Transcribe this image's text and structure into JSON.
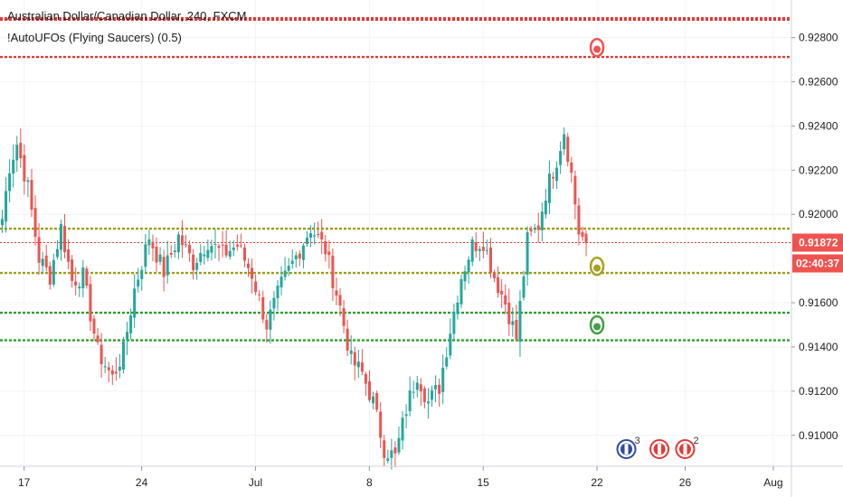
{
  "legend": {
    "symbol_title": "Australian Dollar/Canadian Dollar, 240, FXCM",
    "indicator_title": "!AutoUFOs (Flying Saucers) (0.5)"
  },
  "price_axis": {
    "ticks": [
      "0.92800",
      "0.92600",
      "0.92400",
      "0.92200",
      "0.92000",
      "0.91600",
      "0.91400",
      "0.91200",
      "0.91000"
    ],
    "tick_values": [
      0.928,
      0.926,
      0.924,
      0.922,
      0.92,
      0.916,
      0.914,
      0.912,
      0.91
    ],
    "current_price_label": "0.91872",
    "current_price": 0.91872,
    "countdown_label": "02:40:37",
    "badge_color": "#ef5350"
  },
  "time_axis": {
    "ticks": [
      "17",
      "24",
      "Jul",
      "8",
      "15",
      "22",
      "26",
      "Aug"
    ],
    "tick_bars": [
      3,
      35,
      66,
      97,
      128,
      159,
      183,
      207
    ]
  },
  "levels": [
    {
      "price": 0.92888,
      "color": "#e53935",
      "style": "dotted-thick"
    },
    {
      "price": 0.92881,
      "color": "#e53935",
      "style": "dotted-thick"
    },
    {
      "price": 0.92712,
      "color": "#e53935",
      "style": "dotted-thick"
    },
    {
      "price": 0.91935,
      "color": "#9e9e1a",
      "style": "dotted-thick"
    },
    {
      "price": 0.91872,
      "color": "#e53935",
      "style": "dotted-thin"
    },
    {
      "price": 0.91735,
      "color": "#9e9e1a",
      "style": "dotted-thick"
    },
    {
      "price": 0.91555,
      "color": "#2e9e2e",
      "style": "dotted-thick"
    },
    {
      "price": 0.9143,
      "color": "#2e9e2e",
      "style": "dotted-thick"
    }
  ],
  "ufo_markers": [
    {
      "bar": 159,
      "price": 0.92755,
      "color": "#ef5350"
    },
    {
      "bar": 159,
      "price": 0.91765,
      "color": "#a8a020"
    },
    {
      "bar": 159,
      "price": 0.915,
      "color": "#43a047"
    }
  ],
  "events": [
    {
      "name": "australia-flag-icon",
      "bar": 167,
      "count": "3",
      "color": "#2d4da0"
    },
    {
      "name": "canada-flag-icon",
      "bar": 176,
      "count": "",
      "color": "#e53935"
    },
    {
      "name": "canada-flag-icon-2",
      "bar": 183,
      "count": "2",
      "color": "#e53935"
    }
  ],
  "colors": {
    "up": "#26a69a",
    "down": "#ef5350",
    "grid": "#f0f3fa",
    "axis_line": "#555555"
  },
  "chart_data": {
    "type": "candlestick",
    "title": "Australian Dollar/Canadian Dollar, 240, FXCM",
    "ylim": [
      0.9086,
      0.9297
    ],
    "xlabel": "",
    "ylabel": "",
    "grid": true,
    "anchors": [
      [
        0,
        0.9198
      ],
      [
        2,
        0.9222
      ],
      [
        4,
        0.9232
      ],
      [
        7,
        0.9212
      ],
      [
        10,
        0.918
      ],
      [
        13,
        0.9172
      ],
      [
        16,
        0.9194
      ],
      [
        19,
        0.917
      ],
      [
        22,
        0.9172
      ],
      [
        26,
        0.9138
      ],
      [
        30,
        0.9126
      ],
      [
        33,
        0.9138
      ],
      [
        36,
        0.9166
      ],
      [
        40,
        0.919
      ],
      [
        44,
        0.9174
      ],
      [
        48,
        0.919
      ],
      [
        52,
        0.9178
      ],
      [
        56,
        0.9188
      ],
      [
        60,
        0.9182
      ],
      [
        64,
        0.9186
      ],
      [
        68,
        0.9173
      ],
      [
        72,
        0.915
      ],
      [
        76,
        0.9168
      ],
      [
        80,
        0.9181
      ],
      [
        84,
        0.9194
      ],
      [
        88,
        0.9184
      ],
      [
        92,
        0.9158
      ],
      [
        95,
        0.9134
      ],
      [
        98,
        0.9128
      ],
      [
        101,
        0.9115
      ],
      [
        104,
        0.9094
      ],
      [
        107,
        0.909
      ],
      [
        110,
        0.9112
      ],
      [
        113,
        0.9128
      ],
      [
        116,
        0.9115
      ],
      [
        119,
        0.9122
      ],
      [
        122,
        0.9148
      ],
      [
        125,
        0.9172
      ],
      [
        128,
        0.9186
      ],
      [
        131,
        0.9188
      ],
      [
        134,
        0.9172
      ],
      [
        137,
        0.916
      ],
      [
        140,
        0.9144
      ],
      [
        143,
        0.9188
      ],
      [
        146,
        0.9195
      ],
      [
        148,
        0.921
      ],
      [
        151,
        0.9225
      ],
      [
        153,
        0.9238
      ],
      [
        155,
        0.9218
      ],
      [
        157,
        0.9192
      ],
      [
        159,
        0.9187
      ]
    ]
  }
}
